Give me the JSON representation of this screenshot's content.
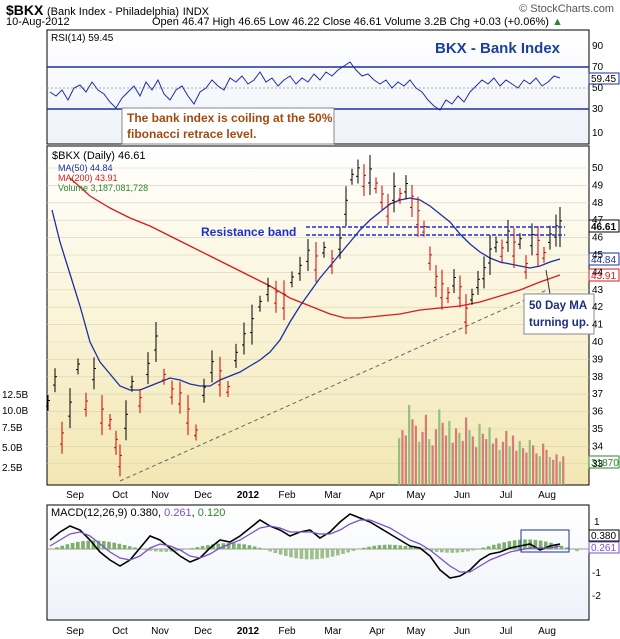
{
  "header": {
    "symbol": "$BKX",
    "name": "(Bank Index - Philadelphia)",
    "exchange": "INDX",
    "date": "10-Aug-2012",
    "ohlc": "Open 46.47  High 46.65  Low 46.22  Close 46.61  Volume 3.2B  Chg +0.03 (+0.06%)",
    "arrow": "▲",
    "watermark": "© StockCharts.com"
  },
  "rsi": {
    "label": "RSI(14) 59.45",
    "title": "BKX - Bank Index",
    "annotation_line1": "The bank index is coiling at the 50%",
    "annotation_line2": "fibonacci retrace level.",
    "yticks": [
      "90",
      "70",
      "50",
      "30",
      "10"
    ],
    "ylim": [
      0,
      100
    ],
    "overbought": 70,
    "oversold": 30,
    "last_tag": "59.45"
  },
  "price": {
    "legend_title": "$BKX (Daily) 46.61",
    "legend_ma50": "MA(50) 44.84",
    "legend_ma200": "MA(200) 43.91",
    "legend_volume": "Volume 3,187,081,728",
    "yticks": [
      "50",
      "49",
      "48",
      "47",
      "46",
      "45",
      "44",
      "43",
      "42",
      "41",
      "40",
      "39",
      "38",
      "37",
      "36",
      "35",
      "34",
      "33"
    ],
    "vol_ticks": [
      "12.5B",
      "10.0B",
      "7.5B",
      "5.0B",
      "2.5B"
    ],
    "tag_close": "46.61",
    "tag_ma50": "44.84",
    "tag_ma200": "43.91",
    "tag_volume": "31870",
    "resistance_label": "Resistance band",
    "ma_note_line1": "50 Day MA",
    "ma_note_line2": "turning up.",
    "colors": {
      "ma50": "#1c2fa0",
      "ma200": "#d81b1b",
      "price_up": "#000000",
      "price_down": "#d20000",
      "volume": "#d07070",
      "volume_up": "#8cb97a",
      "trend": "#666666",
      "resistance": "#1b2fcc"
    }
  },
  "macd": {
    "label_prefix": "MACD(12,26,9)",
    "macd_val": "0.380",
    "signal_val": "0.261",
    "hist_val": "0.120",
    "yticks": [
      "1",
      "0",
      "-1",
      "-2"
    ],
    "tag_macd": "0.380",
    "tag_signal": "0.261"
  },
  "xaxis": {
    "months": [
      "Sep",
      "Oct",
      "Nov",
      "Dec",
      "2012",
      "Feb",
      "Mar",
      "Apr",
      "May",
      "Jun",
      "Jul",
      "Aug"
    ]
  },
  "chart_data": [
    {
      "type": "line",
      "title": "RSI(14)",
      "x": [
        "Sep",
        "Oct",
        "Nov",
        "Dec",
        "2012",
        "Feb",
        "Mar",
        "Apr",
        "May",
        "Jun",
        "Jul",
        "Aug"
      ],
      "series": [
        {
          "name": "RSI(14)",
          "values": [
            52,
            40,
            58,
            50,
            63,
            62,
            78,
            55,
            30,
            45,
            60,
            59.45
          ]
        }
      ],
      "ylim": [
        0,
        100
      ]
    },
    {
      "type": "line",
      "title": "$BKX (Daily) 46.61",
      "x": [
        "Sep",
        "Oct",
        "Nov",
        "Dec",
        "2012",
        "Feb",
        "Mar",
        "Apr",
        "May",
        "Jun",
        "Jul",
        "Aug"
      ],
      "series": [
        {
          "name": "$BKX",
          "values": [
            36.0,
            35.0,
            38.5,
            36.8,
            40.5,
            43.7,
            49.8,
            48.5,
            44.2,
            43.5,
            46.3,
            46.61
          ]
        },
        {
          "name": "MA(50)",
          "values": [
            36.5,
            36.8,
            37.3,
            37.4,
            38.5,
            41.5,
            45.0,
            47.2,
            46.8,
            45.0,
            44.5,
            44.84
          ]
        },
        {
          "name": "MA(200)",
          "values": [
            44.0,
            41.5,
            39.8,
            39.5,
            39.5,
            40.0,
            41.7,
            41.6,
            41.9,
            42.5,
            43.3,
            43.91
          ]
        }
      ],
      "ylim": [
        32.5,
        51
      ]
    },
    {
      "type": "bar",
      "title": "Volume",
      "categories": [
        "May",
        "Jun",
        "Jul",
        "Aug"
      ],
      "values": [
        9.0,
        8.8,
        6.5,
        3.19
      ],
      "ylim": [
        0,
        12.5
      ]
    },
    {
      "type": "line",
      "title": "MACD(12,26,9)",
      "x": [
        "Sep",
        "Oct",
        "Nov",
        "Dec",
        "2012",
        "Feb",
        "Mar",
        "Apr",
        "May",
        "Jun",
        "Jul",
        "Aug"
      ],
      "series": [
        {
          "name": "MACD",
          "values": [
            0.4,
            -0.8,
            0.3,
            -0.2,
            0.6,
            0.5,
            1.1,
            0.3,
            -1.3,
            -0.4,
            0.3,
            0.38
          ]
        },
        {
          "name": "Signal",
          "values": [
            0.3,
            -0.6,
            0.0,
            -0.1,
            0.4,
            0.5,
            0.9,
            0.5,
            -1.0,
            -0.6,
            0.1,
            0.261
          ]
        }
      ],
      "ylim": [
        -2.5,
        1.5
      ]
    }
  ]
}
